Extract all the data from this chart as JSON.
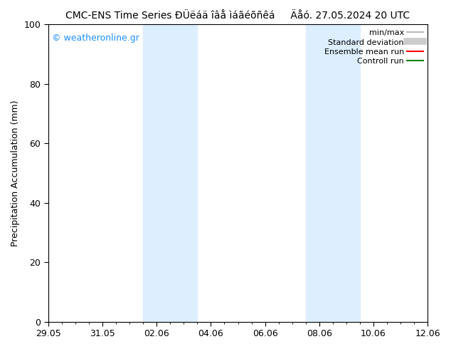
{
  "title": "CMC-ENS Time Series ÐÜëáä îâå ìáãéõñêá     Äåó. 27.05.2024 20 UTC",
  "ylabel": "Precipitation Accumulation (mm)",
  "ylim": [
    0,
    100
  ],
  "yticks": [
    0,
    20,
    40,
    60,
    80,
    100
  ],
  "xtick_labels": [
    "29.05",
    "31.05",
    "02.06",
    "04.06",
    "06.06",
    "08.06",
    "10.06",
    "12.06"
  ],
  "num_xticks": 8,
  "shaded_regions": [
    {
      "xmin": 3.5,
      "xmax": 5.5,
      "color": "#ddeeff"
    },
    {
      "xmin": 9.5,
      "xmax": 11.5,
      "color": "#ddeeff"
    }
  ],
  "watermark_text": "© weatheronline.gr",
  "watermark_color": "#1e90ff",
  "legend_entries": [
    {
      "label": "min/max",
      "color": "#aaaaaa",
      "lw": 1.2,
      "type": "line"
    },
    {
      "label": "Standard deviation",
      "color": "#cccccc",
      "lw": 7,
      "type": "line"
    },
    {
      "label": "Ensemble mean run",
      "color": "#ff0000",
      "lw": 1.5,
      "type": "line"
    },
    {
      "label": "Controll run",
      "color": "#008000",
      "lw": 1.5,
      "type": "line"
    }
  ],
  "bg_color": "#ffffff",
  "plot_bg_color": "#ffffff",
  "title_fontsize": 10,
  "label_fontsize": 9,
  "tick_fontsize": 9,
  "legend_fontsize": 8
}
